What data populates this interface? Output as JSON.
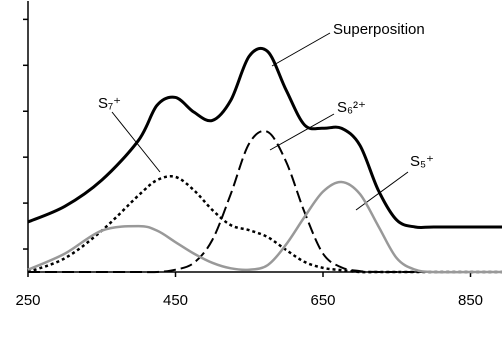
{
  "chart_data": {
    "type": "line",
    "x": [
      250,
      300,
      350,
      400,
      425,
      450,
      475,
      500,
      525,
      550,
      575,
      600,
      625,
      650,
      675,
      700,
      725,
      750,
      775,
      800,
      850,
      895
    ],
    "series": [
      {
        "name": "Superposition",
        "color": "#000000",
        "width": 3,
        "dash": "none",
        "values": [
          0.59,
          0.93,
          1.5,
          2.37,
          3.13,
          3.3,
          2.98,
          2.8,
          3.24,
          4.2,
          4.3,
          3.46,
          2.7,
          2.63,
          2.63,
          2.26,
          1.28,
          0.63,
          0.48,
          0.48,
          0.48,
          0.48
        ]
      },
      {
        "name": "S₇⁺",
        "color": "#000000",
        "width": 2.5,
        "dash": "3,3",
        "values": [
          -0.5,
          -0.2,
          0.4,
          1.17,
          1.5,
          1.57,
          1.28,
          0.85,
          0.52,
          0.41,
          0.26,
          -0.02,
          -0.28,
          -0.41,
          -0.46,
          -0.5,
          -0.5,
          -0.5,
          -0.5,
          -0.5,
          -0.5,
          -0.5
        ]
      },
      {
        "name": "S₆²⁺",
        "color": "#000000",
        "width": 2,
        "dash": "12,5",
        "values": [
          -0.5,
          -0.5,
          -0.5,
          -0.5,
          -0.5,
          -0.45,
          -0.3,
          0.2,
          1.2,
          2.3,
          2.55,
          1.9,
          0.8,
          -0.1,
          -0.4,
          -0.48,
          -0.5,
          -0.5,
          -0.5,
          -0.5,
          -0.5,
          -0.5
        ]
      },
      {
        "name": "S₅⁺",
        "color": "#999999",
        "width": 2.5,
        "dash": "none",
        "values": [
          -0.45,
          -0.1,
          0.4,
          0.5,
          0.4,
          0.15,
          -0.1,
          -0.3,
          -0.42,
          -0.45,
          -0.35,
          0.1,
          0.7,
          1.25,
          1.46,
          1.2,
          0.5,
          -0.2,
          -0.45,
          -0.5,
          -0.5,
          -0.5
        ]
      }
    ],
    "xlim": [
      250,
      890
    ],
    "xticks": [
      250,
      450,
      650,
      850
    ],
    "ylim": [
      -0.5,
      5.4
    ],
    "yticks": [
      0,
      1,
      2,
      3,
      4,
      5
    ]
  }
}
